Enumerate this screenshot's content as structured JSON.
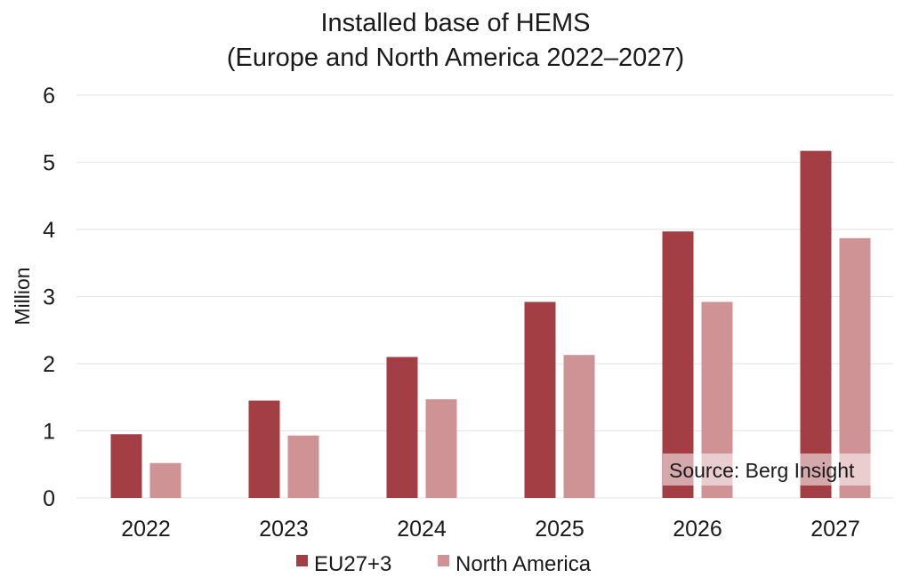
{
  "colors": {
    "eu": "#a33e45",
    "na": "#d09395",
    "grid": "#e6e6e6",
    "source_bg": "#ffffff"
  },
  "chart_data": {
    "type": "bar",
    "title": [
      "Installed base of HEMS",
      "(Europe and North America 2022–2027)"
    ],
    "xlabel": "",
    "ylabel": "Million",
    "ylim": [
      0,
      6
    ],
    "yticks": [
      0,
      1,
      2,
      3,
      4,
      5,
      6
    ],
    "categories": [
      "2022",
      "2023",
      "2024",
      "2025",
      "2026",
      "2027"
    ],
    "series": [
      {
        "name": "EU27+3",
        "values": [
          0.95,
          1.45,
          2.1,
          2.92,
          3.97,
          5.17
        ]
      },
      {
        "name": "North America",
        "values": [
          0.52,
          0.93,
          1.47,
          2.13,
          2.92,
          3.87
        ]
      }
    ],
    "grid": true,
    "legend": "bottom",
    "annotation": "Source: Berg Insight"
  }
}
